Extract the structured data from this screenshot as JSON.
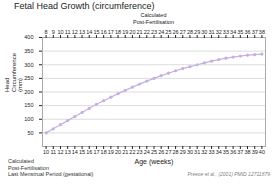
{
  "chart_data": {
    "type": "line",
    "title": "Fetal Head Growth (circumference)",
    "xlabel": "Age (weeks)",
    "ylabel": "Head\nCircumference\n(mm)",
    "x2label": "Calculated\nPost-Fertilisation",
    "annotations": [
      "Calculated\nPost-Fertilisation",
      "Last Menstrual Period (gestational)"
    ],
    "footnote": "Preece et al., (2001) PMID 12711879",
    "x": [
      10,
      11,
      12,
      13,
      14,
      15,
      16,
      17,
      18,
      19,
      20,
      21,
      22,
      23,
      24,
      25,
      26,
      27,
      28,
      29,
      30,
      31,
      32,
      33,
      34,
      35,
      36,
      37,
      38,
      39,
      40
    ],
    "values": [
      50,
      65,
      80,
      95,
      110,
      125,
      140,
      155,
      168,
      181,
      194,
      206,
      218,
      229,
      240,
      250,
      260,
      269,
      278,
      286,
      293,
      300,
      307,
      313,
      319,
      324,
      328,
      332,
      335,
      337,
      339
    ],
    "color": "#c5b0e0",
    "marker": "o",
    "xlim": [
      9.5,
      40.5
    ],
    "xticks": [
      10,
      11,
      12,
      13,
      14,
      15,
      16,
      17,
      18,
      19,
      20,
      21,
      22,
      23,
      24,
      25,
      26,
      27,
      28,
      29,
      30,
      31,
      32,
      33,
      34,
      35,
      36,
      37,
      38,
      39,
      40
    ],
    "x2ticks": [
      {
        "value": 10,
        "label": "8"
      },
      {
        "value": 11,
        "label": "9"
      },
      {
        "value": 12,
        "label": "10"
      },
      {
        "value": 13,
        "label": "11"
      },
      {
        "value": 14,
        "label": "12"
      },
      {
        "value": 15,
        "label": "13"
      },
      {
        "value": 16,
        "label": "14"
      },
      {
        "value": 17,
        "label": "15"
      },
      {
        "value": 18,
        "label": "16"
      },
      {
        "value": 19,
        "label": "17"
      },
      {
        "value": 20,
        "label": "18"
      },
      {
        "value": 21,
        "label": "19"
      },
      {
        "value": 22,
        "label": "20"
      },
      {
        "value": 23,
        "label": "21"
      },
      {
        "value": 24,
        "label": "22"
      },
      {
        "value": 25,
        "label": "23"
      },
      {
        "value": 26,
        "label": "24"
      },
      {
        "value": 27,
        "label": "25"
      },
      {
        "value": 28,
        "label": "26"
      },
      {
        "value": 29,
        "label": "27"
      },
      {
        "value": 30,
        "label": "28"
      },
      {
        "value": 31,
        "label": "29"
      },
      {
        "value": 32,
        "label": "30"
      },
      {
        "value": 33,
        "label": "31"
      },
      {
        "value": 34,
        "label": "32"
      },
      {
        "value": 35,
        "label": "33"
      },
      {
        "value": 36,
        "label": "34"
      },
      {
        "value": 37,
        "label": "35"
      },
      {
        "value": 38,
        "label": "36"
      },
      {
        "value": 39,
        "label": "37"
      },
      {
        "value": 40,
        "label": "38"
      }
    ],
    "ylim": [
      0,
      400
    ],
    "yticks": [
      50,
      100,
      150,
      200,
      250,
      300,
      350,
      400
    ],
    "grid": true
  }
}
